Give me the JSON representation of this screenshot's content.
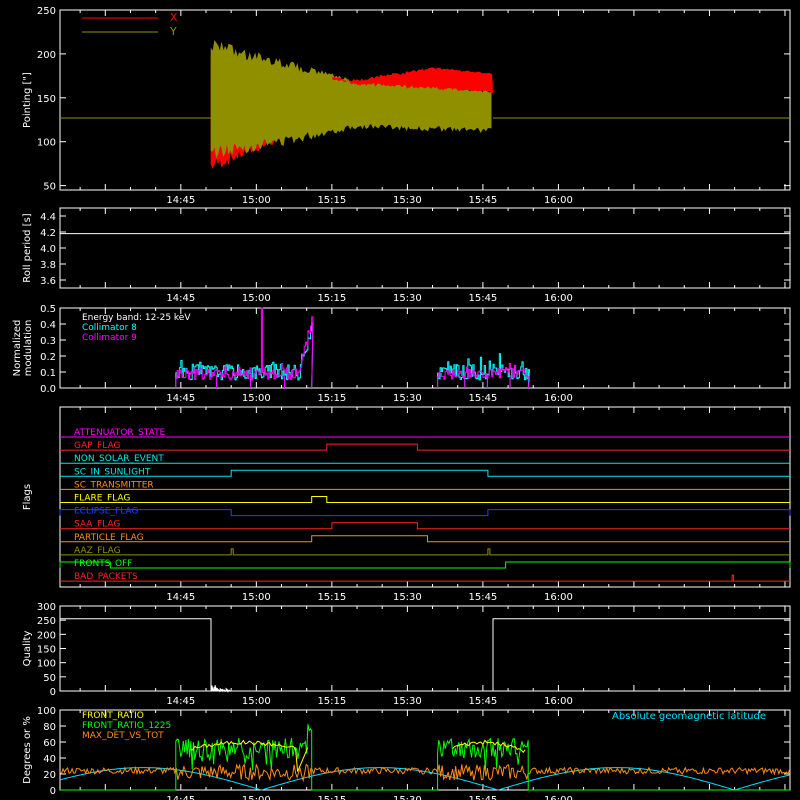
{
  "panels": [
    {
      "id": "pointing",
      "ylabel": "Pointing [\"]",
      "yticks": [
        "50",
        "100",
        "150",
        "200",
        "250"
      ],
      "ylim": [
        45,
        250
      ],
      "legend": [
        {
          "label": "X",
          "color": "#ff0000"
        },
        {
          "label": "Y",
          "color": "#8f8f00"
        }
      ]
    },
    {
      "id": "roll",
      "ylabel": "Roll period [s]",
      "yticks": [
        "3.6",
        "3.8",
        "4.0",
        "4.2",
        "4.4"
      ],
      "ylim": [
        3.5,
        4.5
      ]
    },
    {
      "id": "modulation",
      "ylabel_lines": [
        "Normalized",
        "modulation"
      ],
      "yticks": [
        "0.0",
        "0.1",
        "0.2",
        "0.3",
        "0.4",
        "0.5"
      ],
      "ylim": [
        0,
        0.5
      ],
      "legend": [
        {
          "label": "Energy band: 12-25 keV",
          "color": "#ffffff"
        },
        {
          "label": "Collimator 8",
          "color": "#00ffff"
        },
        {
          "label": "Collimator 9",
          "color": "#ff00ff"
        }
      ]
    },
    {
      "id": "flags",
      "ylabel": "Flags"
    },
    {
      "id": "quality",
      "ylabel": "Quality",
      "yticks": [
        "0",
        "50",
        "100",
        "150",
        "200",
        "250",
        "300"
      ],
      "ylim": [
        0,
        300
      ]
    },
    {
      "id": "ratio",
      "ylabel": "Degrees or %",
      "yticks": [
        "0",
        "20",
        "40",
        "60",
        "80",
        "100"
      ],
      "ylim": [
        0,
        100
      ],
      "legend": [
        {
          "label": "FRONT_RATIO",
          "color": "#ffff00"
        },
        {
          "label": "FRONT_RATIO_1225",
          "color": "#00ff00"
        },
        {
          "label": "MAX_DET_VS_TOT",
          "color": "#ff8c1a"
        }
      ],
      "right_label": {
        "text": "Absolute geomagnetic latitude",
        "color": "#00e0ff"
      }
    }
  ],
  "time_axis": {
    "tick_labels": [
      "14:45",
      "15:00",
      "15:15",
      "15:30",
      "15:45",
      "16:00"
    ],
    "tick_minutes": [
      885,
      900,
      915,
      930,
      945,
      960
    ],
    "xlim_minutes": [
      861,
      1006
    ]
  },
  "flags": [
    {
      "label": "ATTENUATOR_STATE",
      "color": "#ff00ff",
      "high": []
    },
    {
      "label": "GAP_FLAG",
      "color": "#ff2020",
      "high": [
        [
          914,
          932
        ]
      ]
    },
    {
      "label": "NON_SOLAR_EVENT",
      "color": "#00e8e8",
      "high": []
    },
    {
      "label": "SC_IN_SUNLIGHT",
      "color": "#00e8e8",
      "high": [
        [
          895,
          946
        ]
      ]
    },
    {
      "label": "SC_TRANSMITTER",
      "color": "#ff8c1a",
      "high": []
    },
    {
      "label": "FLARE_FLAG",
      "color": "#ffff00",
      "high": [
        [
          911,
          914
        ]
      ]
    },
    {
      "label": "ECLIPSE_FLAG",
      "color": "#2040ff",
      "high": [
        [
          861,
          895
        ],
        [
          946,
          1006
        ]
      ]
    },
    {
      "label": "SAA_FLAG",
      "color": "#ff2020",
      "high": [
        [
          915,
          932
        ]
      ]
    },
    {
      "label": "PARTICLE_FLAG",
      "color": "#ff8c1a",
      "high": [
        [
          911,
          934
        ]
      ]
    },
    {
      "label": "AAZ_FLAG",
      "color": "#8f8f00",
      "high": [
        [
          895,
          895.4
        ],
        [
          946,
          946.4
        ]
      ]
    },
    {
      "label": "FRONTS_OFF",
      "color": "#00ff00",
      "high": [
        [
          861,
          871
        ],
        [
          949.5,
          1006
        ]
      ]
    },
    {
      "label": "BAD_PACKETS",
      "color": "#ff2020",
      "high": [
        [
          994.5,
          994.8
        ]
      ]
    }
  ],
  "chart_data": [
    {
      "type": "line",
      "panel": "pointing",
      "ylabel": "Pointing [\"]",
      "x_unit": "UT time",
      "series": [
        {
          "name": "X",
          "color": "#ff0000",
          "envelope": [
            {
              "t": "14:51",
              "min": 65,
              "max": 205
            },
            {
              "t": "15:05",
              "min": 100,
              "max": 170
            },
            {
              "t": "15:20",
              "min": 122,
              "max": 172
            },
            {
              "t": "15:35",
              "min": 150,
              "max": 185
            },
            {
              "t": "15:47",
              "min": 162,
              "max": 178
            }
          ],
          "baseline": 127
        },
        {
          "name": "Y",
          "color": "#8f8f00",
          "envelope": [
            {
              "t": "14:51",
              "min": 80,
              "max": 218
            },
            {
              "t": "15:05",
              "min": 95,
              "max": 195
            },
            {
              "t": "15:20",
              "min": 115,
              "max": 170
            },
            {
              "t": "15:35",
              "min": 112,
              "max": 165
            },
            {
              "t": "15:47",
              "min": 110,
              "max": 160
            }
          ],
          "baseline": 127
        }
      ]
    },
    {
      "type": "line",
      "panel": "roll",
      "ylabel": "Roll period [s]",
      "series": [
        {
          "color": "#ffffff",
          "value": 4.18
        }
      ]
    },
    {
      "type": "bar",
      "panel": "modulation",
      "series": [
        {
          "name": "Collimator 8",
          "color": "#00ffff",
          "windows": [
            [
              "14:44",
              "15:11"
            ],
            [
              "15:36",
              "15:54"
            ]
          ],
          "typical": [
            0.05,
            0.15
          ],
          "peak": 0.46
        },
        {
          "name": "Collimator 9",
          "color": "#ff00ff",
          "windows": [
            [
              "14:44",
              "15:11"
            ],
            [
              "15:36",
              "15:54"
            ]
          ],
          "typical": [
            0.05,
            0.13
          ],
          "peak": 0.5
        }
      ]
    },
    {
      "type": "line",
      "panel": "quality",
      "ylabel": "Quality",
      "series": [
        {
          "color": "#ffffff",
          "segments": [
            {
              "from": "14:21",
              "to": "14:51",
              "value": 255
            },
            {
              "from": "14:51",
              "to": "15:47",
              "value": 0
            },
            {
              "from": "15:47",
              "to": "16:46",
              "value": 255
            }
          ]
        }
      ]
    },
    {
      "type": "line",
      "panel": "ratio",
      "ylabel": "Degrees or %",
      "series": [
        {
          "name": "FRONT_RATIO",
          "color": "#ffff00",
          "typical": [
            35,
            60
          ]
        },
        {
          "name": "FRONT_RATIO_1225",
          "color": "#00ff00",
          "typical": [
            40,
            65
          ],
          "peak": 83
        },
        {
          "name": "MAX_DET_VS_TOT",
          "color": "#ff8c1a",
          "typical": [
            12,
            30
          ]
        },
        {
          "name": "Absolute geomagnetic latitude",
          "color": "#00e0ff",
          "range": [
            0,
            30
          ]
        }
      ]
    }
  ]
}
